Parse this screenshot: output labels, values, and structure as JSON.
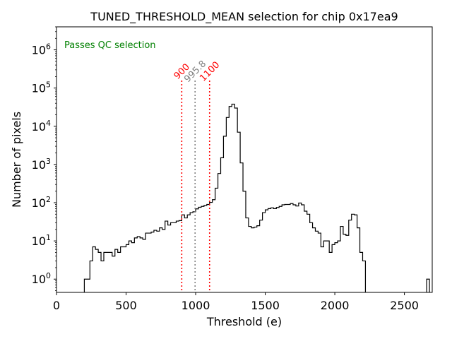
{
  "chart_data": {
    "type": "histogram",
    "title": "TUNED_THRESHOLD_MEAN selection for chip 0x17ea9",
    "xlabel": "Threshold (e)",
    "ylabel": "Number of pixels",
    "xlim": [
      0,
      2700
    ],
    "ylim": [
      0.45,
      4000000
    ],
    "yscale": "log",
    "x_ticks": [
      0,
      500,
      1000,
      1500,
      2000,
      2500
    ],
    "x_tick_labels": [
      "0",
      "500",
      "1000",
      "1500",
      "2000",
      "2500"
    ],
    "y_ticks": [
      1,
      10,
      100,
      1000,
      10000,
      100000,
      1000000
    ],
    "y_tick_labels": [
      {
        "base": "10",
        "exp": "0"
      },
      {
        "base": "10",
        "exp": "1"
      },
      {
        "base": "10",
        "exp": "2"
      },
      {
        "base": "10",
        "exp": "3"
      },
      {
        "base": "10",
        "exp": "4"
      },
      {
        "base": "10",
        "exp": "5"
      },
      {
        "base": "10",
        "exp": "6"
      }
    ],
    "bin_width": 20,
    "histogram": {
      "edges_start": 200,
      "counts": [
        1,
        1,
        3,
        7,
        6,
        5,
        3,
        5,
        5,
        5,
        4,
        6,
        5,
        7,
        7,
        8,
        10,
        9,
        12,
        13,
        12,
        11,
        16,
        16,
        17,
        19,
        18,
        22,
        20,
        33,
        26,
        30,
        30,
        33,
        34,
        48,
        40,
        48,
        55,
        58,
        69,
        76,
        80,
        85,
        90,
        102,
        120,
        240,
        580,
        1500,
        5500,
        17000,
        33000,
        38000,
        30000,
        7000,
        1100,
        200,
        40,
        24,
        22,
        23,
        25,
        35,
        55,
        65,
        70,
        73,
        70,
        75,
        80,
        88,
        90,
        90,
        95,
        88,
        82,
        98,
        88,
        60,
        50,
        30,
        22,
        18,
        16,
        7,
        10,
        10,
        5,
        8,
        9,
        10,
        24,
        15,
        14,
        35,
        50,
        48,
        22,
        5,
        3,
        0.2,
        0.2,
        0.2,
        0.2,
        0.2,
        0.2,
        0.2,
        0.2,
        0.2,
        0.2,
        0.2,
        0.2,
        0.2,
        0.2,
        0.2,
        0.2,
        0.2,
        0.2,
        0.2,
        0.2,
        0.2,
        0.2,
        1
      ]
    },
    "vlines": [
      {
        "x": 900,
        "label": "900",
        "color": "#ff0000"
      },
      {
        "x": 995.8,
        "label": "995.8",
        "color": "#808080"
      },
      {
        "x": 1100,
        "label": "1100",
        "color": "#ff0000"
      }
    ],
    "annotation": {
      "text": "Passes QC selection",
      "color": "#008000"
    },
    "line_color": "#000000"
  }
}
